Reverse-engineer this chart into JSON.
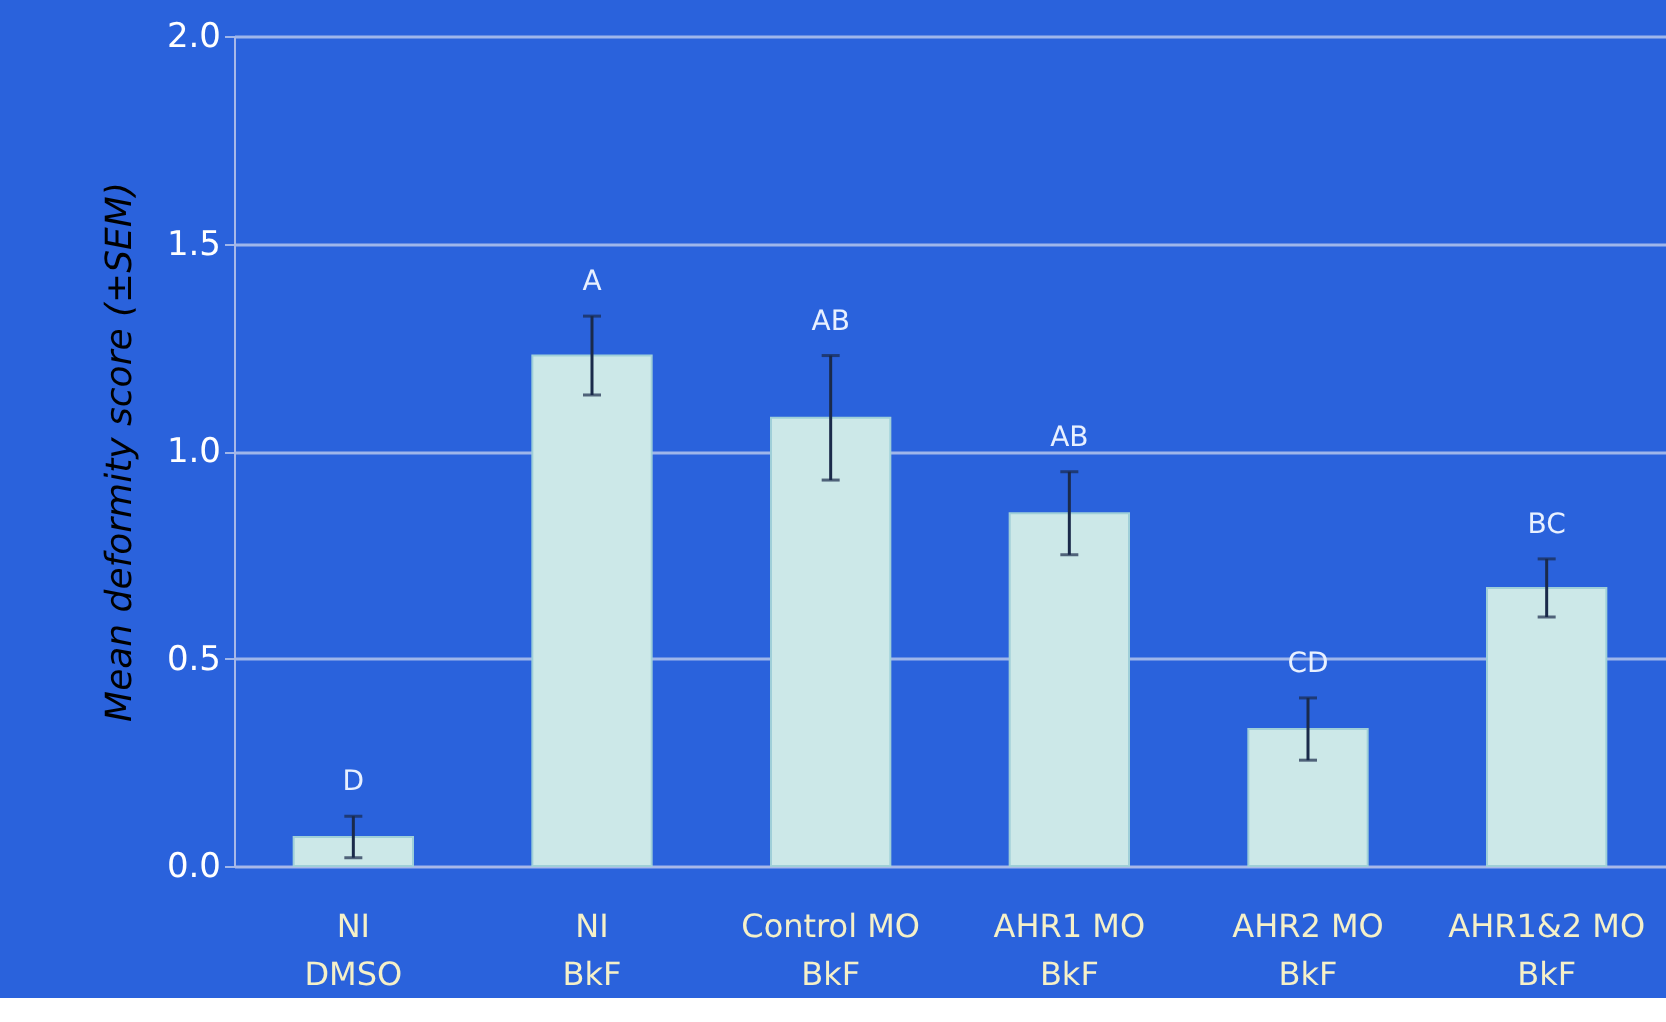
{
  "chart_data": {
    "type": "bar",
    "ylabel": "Mean deformity score (±SEM)",
    "categories": [
      "NI\nDMSO",
      "NI\nBkF",
      "Control MO\nBkF",
      "AHR1 MO\nBkF",
      "AHR2 MO\nBkF",
      "AHR1&2 MO\nBkF"
    ],
    "values": [
      0.07,
      1.23,
      1.08,
      0.85,
      0.33,
      0.67
    ],
    "errors": [
      0.05,
      0.095,
      0.15,
      0.1,
      0.075,
      0.07
    ],
    "color": "#cce8e8",
    "ylim": [
      0,
      2.0
    ],
    "yticks": [
      {
        "value": 0,
        "label": "0.0"
      },
      0.5,
      {
        "value": 1,
        "label": "1.0"
      },
      1.5,
      {
        "value": 2,
        "label": "2.0"
      }
    ],
    "grid": "y",
    "annotations": [
      "D",
      "A",
      "AB",
      "AB",
      "CD",
      "BC"
    ]
  }
}
